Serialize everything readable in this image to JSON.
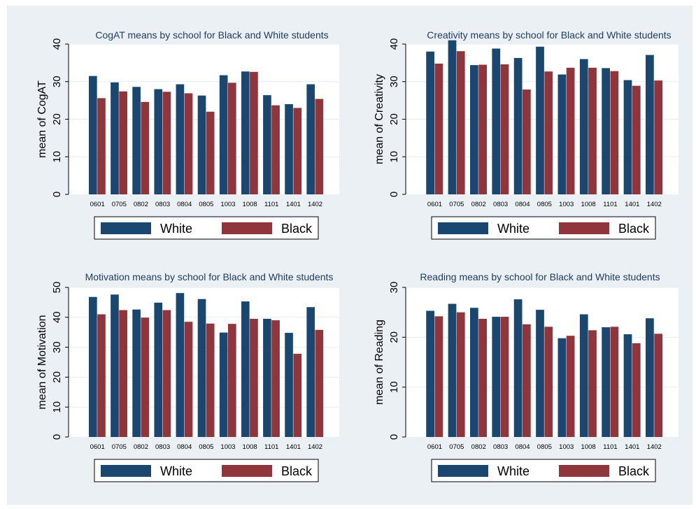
{
  "colors": {
    "white_series": "#1a476f",
    "black_series": "#90353b",
    "background": "#eaf0f3",
    "plot_background": "#ffffff",
    "title_color": "#1e3a5f",
    "grid": "#e7eef2"
  },
  "chart_data": [
    {
      "type": "bar",
      "title": "CogAT means by school for Black and White students",
      "ylabel": "mean of CogAT",
      "xlabel": "",
      "ylim": [
        0,
        40
      ],
      "yticks": [
        "0",
        "10",
        "20",
        "30",
        "40"
      ],
      "categories": [
        "0601",
        "0705",
        "0802",
        "0803",
        "0804",
        "0805",
        "1003",
        "1008",
        "1101",
        "1401",
        "1402"
      ],
      "series": [
        {
          "name": "White",
          "values": [
            31.5,
            29.8,
            28.6,
            28.0,
            29.3,
            26.3,
            31.7,
            32.7,
            26.4,
            24.0,
            29.3
          ]
        },
        {
          "name": "Black",
          "values": [
            25.6,
            27.4,
            24.6,
            27.3,
            26.9,
            22.0,
            29.7,
            32.6,
            23.7,
            23.0,
            25.4
          ]
        }
      ],
      "legend_position": "bottom",
      "grid": true
    },
    {
      "type": "bar",
      "title": "Creativity means by school for Black and White students",
      "ylabel": "mean of Creativity",
      "xlabel": "",
      "ylim": [
        0,
        40
      ],
      "yticks": [
        "0",
        "10",
        "20",
        "30",
        "40"
      ],
      "categories": [
        "0601",
        "0705",
        "0802",
        "0803",
        "0804",
        "0805",
        "1003",
        "1008",
        "1101",
        "1401",
        "1402"
      ],
      "series": [
        {
          "name": "White",
          "values": [
            38.0,
            41.0,
            34.4,
            38.8,
            36.3,
            39.3,
            31.9,
            36.0,
            33.6,
            30.4,
            37.1
          ]
        },
        {
          "name": "Black",
          "values": [
            34.8,
            38.1,
            34.5,
            34.6,
            27.9,
            32.7,
            33.7,
            33.7,
            32.8,
            28.9,
            30.3
          ]
        }
      ],
      "legend_position": "bottom",
      "grid": true
    },
    {
      "type": "bar",
      "title": "Motivation means by school for Black and White students",
      "ylabel": "mean of Motivation",
      "xlabel": "",
      "ylim": [
        0,
        50
      ],
      "yticks": [
        "0",
        "10",
        "20",
        "30",
        "40",
        "50"
      ],
      "categories": [
        "0601",
        "0705",
        "0802",
        "0803",
        "0804",
        "0805",
        "1003",
        "1008",
        "1101",
        "1401",
        "1402"
      ],
      "series": [
        {
          "name": "White",
          "values": [
            46.8,
            47.6,
            42.6,
            44.9,
            48.1,
            46.1,
            34.9,
            45.3,
            39.5,
            34.8,
            43.4
          ]
        },
        {
          "name": "Black",
          "values": [
            41.0,
            42.4,
            39.9,
            42.4,
            38.5,
            37.9,
            37.8,
            39.5,
            39.0,
            27.8,
            35.8
          ]
        }
      ],
      "legend_position": "bottom",
      "grid": true
    },
    {
      "type": "bar",
      "title": "Reading means by school for Black and White students",
      "ylabel": "mean of Reading",
      "xlabel": "",
      "ylim": [
        0,
        30
      ],
      "yticks": [
        "0",
        "10",
        "20",
        "30"
      ],
      "categories": [
        "0601",
        "0705",
        "0802",
        "0803",
        "0804",
        "0805",
        "1003",
        "1008",
        "1101",
        "1401",
        "1402"
      ],
      "series": [
        {
          "name": "White",
          "values": [
            25.3,
            26.7,
            25.9,
            24.1,
            27.6,
            25.5,
            19.8,
            24.6,
            22.0,
            20.6,
            23.8
          ]
        },
        {
          "name": "Black",
          "values": [
            24.2,
            25.0,
            23.7,
            24.1,
            22.6,
            22.1,
            20.3,
            21.4,
            22.1,
            18.8,
            20.7
          ]
        }
      ],
      "legend_position": "bottom",
      "grid": true
    }
  ]
}
